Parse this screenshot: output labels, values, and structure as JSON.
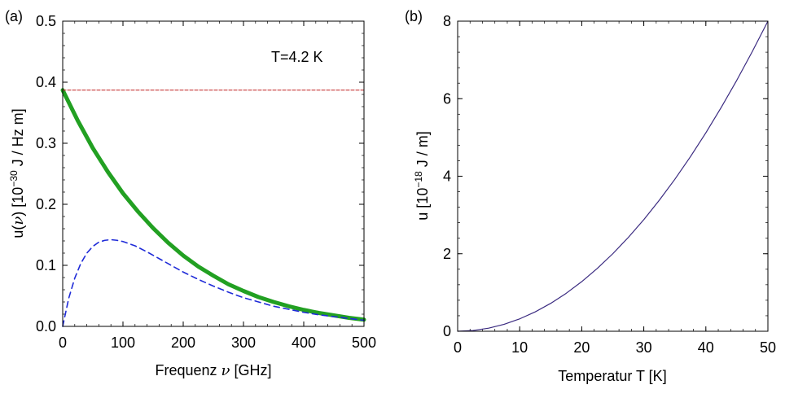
{
  "chart_data": [
    {
      "panel_label": "(a)",
      "type": "line",
      "xlabel_pre": "Frequenz ",
      "xlabel_sym": "ν",
      "xlabel_post": " [GHz]",
      "ylabel_pre": "u(",
      "ylabel_sym": "ν",
      "ylabel_mid": ") [10",
      "ylabel_sup": "−30",
      "ylabel_post": " J / Hz m]",
      "xlim": [
        0,
        500
      ],
      "ylim": [
        0,
        0.5
      ],
      "xticks": [
        "0",
        "100",
        "200",
        "300",
        "400",
        "500"
      ],
      "yticks": [
        "0.0",
        "0.1",
        "0.2",
        "0.3",
        "0.4",
        "0.5"
      ],
      "annotation": "T=4.2 K",
      "grid": false,
      "series": [
        {
          "style": "solid-thick",
          "color": "#22a022",
          "x": [
            0,
            25,
            50,
            75,
            100,
            125,
            150,
            175,
            200,
            225,
            250,
            275,
            300,
            325,
            350,
            375,
            400,
            425,
            450,
            475,
            500
          ],
          "y": [
            0.387,
            0.337,
            0.292,
            0.253,
            0.218,
            0.188,
            0.161,
            0.137,
            0.116,
            0.098,
            0.083,
            0.069,
            0.058,
            0.048,
            0.04,
            0.033,
            0.027,
            0.022,
            0.018,
            0.014,
            0.011
          ]
        },
        {
          "style": "dashed",
          "color": "#1f2bd8",
          "x": [
            0,
            10,
            20,
            30,
            40,
            50,
            60,
            70,
            80,
            90,
            100,
            120,
            140,
            160,
            180,
            200,
            225,
            250,
            275,
            300,
            325,
            350,
            375,
            400,
            425,
            450,
            475,
            500
          ],
          "y": [
            0.0,
            0.046,
            0.079,
            0.103,
            0.12,
            0.131,
            0.138,
            0.141,
            0.142,
            0.141,
            0.139,
            0.132,
            0.122,
            0.111,
            0.1,
            0.089,
            0.077,
            0.066,
            0.056,
            0.047,
            0.04,
            0.033,
            0.028,
            0.023,
            0.019,
            0.016,
            0.013,
            0.01
          ]
        },
        {
          "style": "dashed-thin",
          "color": "#c02020",
          "x": [
            0,
            500
          ],
          "y": [
            0.387,
            0.387
          ]
        }
      ]
    },
    {
      "panel_label": "(b)",
      "type": "line",
      "xlabel": "Temperatur T [K]",
      "ylabel_pre": "u [10",
      "ylabel_sup": "−18",
      "ylabel_post": " J / m]",
      "xlim": [
        0,
        50
      ],
      "ylim": [
        0,
        8
      ],
      "xticks": [
        "0",
        "10",
        "20",
        "30",
        "40",
        "50"
      ],
      "yticks": [
        "0",
        "2",
        "4",
        "6",
        "8"
      ],
      "grid": false,
      "series": [
        {
          "style": "solid-thin",
          "color": "#3a2a80",
          "x": [
            0,
            2.5,
            5,
            7.5,
            10,
            12.5,
            15,
            17.5,
            20,
            22.5,
            25,
            27.5,
            30,
            32.5,
            35,
            37.5,
            40,
            42.5,
            45,
            47.5,
            50
          ],
          "y": [
            0.0,
            0.02,
            0.08,
            0.18,
            0.32,
            0.5,
            0.72,
            0.98,
            1.28,
            1.62,
            2.0,
            2.42,
            2.88,
            3.38,
            3.92,
            4.5,
            5.12,
            5.78,
            6.48,
            7.22,
            8.0
          ]
        }
      ]
    }
  ]
}
